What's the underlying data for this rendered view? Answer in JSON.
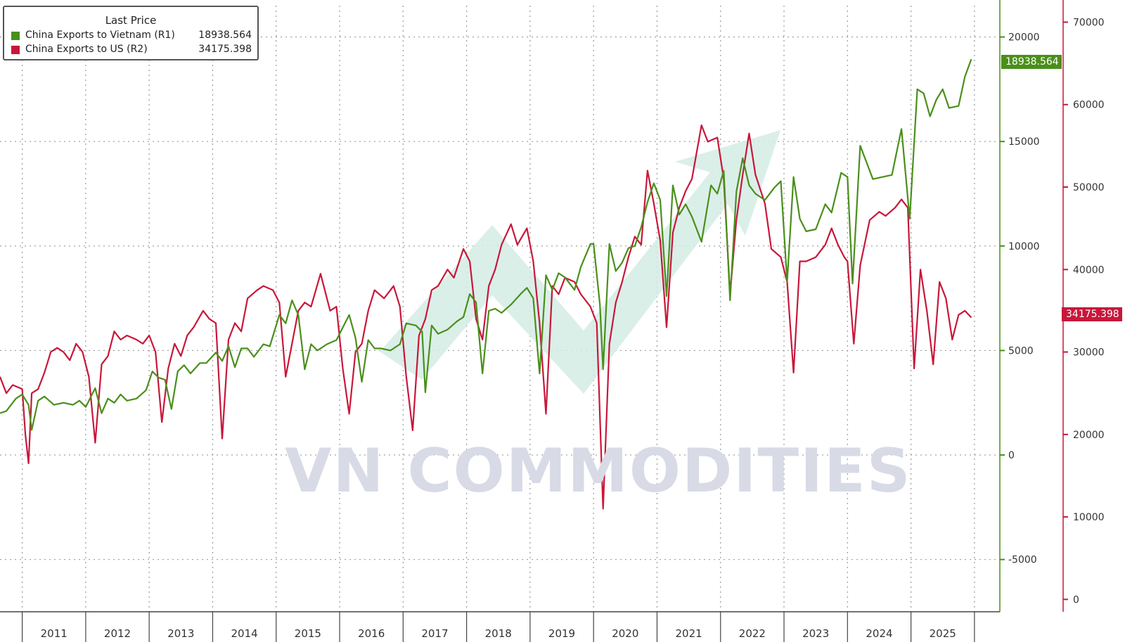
{
  "legend": {
    "title": "Last Price",
    "entries": [
      {
        "name": "China Exports to Vietnam  (R1)",
        "value": "18938.564",
        "color": "#4a8f1b"
      },
      {
        "name": "China Exports to US  (R2)",
        "value": "34175.398",
        "color": "#c8173a"
      }
    ]
  },
  "watermark": "VN COMMODITIES",
  "last_tags": {
    "vietnam": "18938.564",
    "us": "34175.398"
  },
  "chart_data": {
    "type": "line",
    "x_tick_labels": [
      "2011",
      "2012",
      "2013",
      "2014",
      "2015",
      "2016",
      "2017",
      "2018",
      "2019",
      "2020",
      "2021",
      "2022",
      "2023",
      "2024",
      "2025"
    ],
    "x_range": [
      2010.65,
      2026.4
    ],
    "axes": {
      "r1": {
        "ticks": [
          20000,
          15000,
          10000,
          5000,
          0,
          -5000
        ],
        "range": [
          -7500,
          21500
        ],
        "color": "#4a8f1b"
      },
      "r2": {
        "ticks": [
          70000,
          60000,
          50000,
          40000,
          30000,
          20000,
          10000,
          0
        ],
        "range": [
          -1500,
          72000
        ],
        "color": "#c8173a"
      }
    },
    "grid": true,
    "legend_position": "top-left",
    "series": [
      {
        "name": "China Exports to Vietnam  (R1)",
        "axis": "r1",
        "color": "#4a8f1b",
        "points": [
          [
            2010.65,
            2000
          ],
          [
            2010.75,
            2100
          ],
          [
            2010.9,
            2700
          ],
          [
            2011.0,
            2900
          ],
          [
            2011.1,
            2400
          ],
          [
            2011.15,
            1200
          ],
          [
            2011.25,
            2600
          ],
          [
            2011.35,
            2800
          ],
          [
            2011.5,
            2400
          ],
          [
            2011.65,
            2500
          ],
          [
            2011.8,
            2400
          ],
          [
            2011.9,
            2600
          ],
          [
            2012.0,
            2300
          ],
          [
            2012.15,
            3200
          ],
          [
            2012.25,
            2000
          ],
          [
            2012.35,
            2700
          ],
          [
            2012.45,
            2500
          ],
          [
            2012.55,
            2900
          ],
          [
            2012.65,
            2600
          ],
          [
            2012.8,
            2700
          ],
          [
            2012.95,
            3100
          ],
          [
            2013.05,
            4000
          ],
          [
            2013.15,
            3700
          ],
          [
            2013.25,
            3600
          ],
          [
            2013.35,
            2200
          ],
          [
            2013.45,
            4000
          ],
          [
            2013.55,
            4300
          ],
          [
            2013.65,
            3900
          ],
          [
            2013.8,
            4400
          ],
          [
            2013.9,
            4400
          ],
          [
            2014.05,
            4900
          ],
          [
            2014.15,
            4500
          ],
          [
            2014.25,
            5200
          ],
          [
            2014.35,
            4200
          ],
          [
            2014.45,
            5100
          ],
          [
            2014.55,
            5100
          ],
          [
            2014.65,
            4700
          ],
          [
            2014.8,
            5300
          ],
          [
            2014.9,
            5200
          ],
          [
            2015.05,
            6700
          ],
          [
            2015.15,
            6300
          ],
          [
            2015.25,
            7400
          ],
          [
            2015.35,
            6700
          ],
          [
            2015.45,
            4100
          ],
          [
            2015.55,
            5300
          ],
          [
            2015.65,
            5000
          ],
          [
            2015.8,
            5300
          ],
          [
            2015.95,
            5500
          ],
          [
            2016.05,
            6100
          ],
          [
            2016.15,
            6700
          ],
          [
            2016.25,
            5600
          ],
          [
            2016.35,
            3500
          ],
          [
            2016.45,
            5500
          ],
          [
            2016.55,
            5100
          ],
          [
            2016.65,
            5100
          ],
          [
            2016.8,
            5000
          ],
          [
            2016.95,
            5300
          ],
          [
            2017.05,
            6300
          ],
          [
            2017.2,
            6200
          ],
          [
            2017.3,
            5900
          ],
          [
            2017.35,
            3000
          ],
          [
            2017.45,
            6200
          ],
          [
            2017.55,
            5800
          ],
          [
            2017.7,
            6000
          ],
          [
            2017.85,
            6400
          ],
          [
            2017.95,
            6600
          ],
          [
            2018.05,
            7700
          ],
          [
            2018.15,
            7300
          ],
          [
            2018.25,
            3900
          ],
          [
            2018.35,
            6900
          ],
          [
            2018.45,
            7000
          ],
          [
            2018.55,
            6800
          ],
          [
            2018.7,
            7200
          ],
          [
            2018.85,
            7700
          ],
          [
            2018.95,
            8000
          ],
          [
            2019.05,
            7500
          ],
          [
            2019.15,
            3900
          ],
          [
            2019.25,
            8600
          ],
          [
            2019.35,
            7900
          ],
          [
            2019.45,
            8700
          ],
          [
            2019.55,
            8500
          ],
          [
            2019.7,
            7900
          ],
          [
            2019.8,
            9000
          ],
          [
            2019.95,
            10100
          ],
          [
            2020.0,
            10100
          ],
          [
            2020.1,
            7200
          ],
          [
            2020.15,
            4100
          ],
          [
            2020.25,
            10100
          ],
          [
            2020.35,
            8800
          ],
          [
            2020.45,
            9200
          ],
          [
            2020.55,
            9900
          ],
          [
            2020.65,
            10000
          ],
          [
            2020.75,
            10900
          ],
          [
            2020.85,
            12100
          ],
          [
            2020.95,
            13000
          ],
          [
            2021.05,
            12200
          ],
          [
            2021.15,
            7600
          ],
          [
            2021.25,
            12900
          ],
          [
            2021.35,
            11500
          ],
          [
            2021.45,
            12000
          ],
          [
            2021.55,
            11400
          ],
          [
            2021.7,
            10200
          ],
          [
            2021.85,
            12900
          ],
          [
            2021.95,
            12500
          ],
          [
            2022.05,
            13600
          ],
          [
            2022.15,
            7400
          ],
          [
            2022.25,
            12600
          ],
          [
            2022.35,
            14200
          ],
          [
            2022.45,
            12900
          ],
          [
            2022.55,
            12500
          ],
          [
            2022.7,
            12200
          ],
          [
            2022.85,
            12800
          ],
          [
            2022.95,
            13100
          ],
          [
            2023.05,
            8300
          ],
          [
            2023.15,
            13300
          ],
          [
            2023.25,
            11300
          ],
          [
            2023.35,
            10700
          ],
          [
            2023.5,
            10800
          ],
          [
            2023.65,
            12000
          ],
          [
            2023.75,
            11600
          ],
          [
            2023.9,
            13500
          ],
          [
            2024.0,
            13300
          ],
          [
            2024.08,
            8200
          ],
          [
            2024.2,
            14800
          ],
          [
            2024.3,
            14000
          ],
          [
            2024.4,
            13200
          ],
          [
            2024.55,
            13300
          ],
          [
            2024.7,
            13400
          ],
          [
            2024.85,
            15600
          ],
          [
            2024.98,
            11300
          ],
          [
            2025.1,
            17500
          ],
          [
            2025.2,
            17300
          ],
          [
            2025.3,
            16200
          ],
          [
            2025.4,
            17000
          ],
          [
            2025.5,
            17500
          ],
          [
            2025.6,
            16600
          ],
          [
            2025.75,
            16700
          ],
          [
            2025.85,
            18100
          ],
          [
            2025.95,
            18938.564
          ]
        ]
      },
      {
        "name": "China Exports to US  (R2)",
        "axis": "r2",
        "color": "#c8173a",
        "points": [
          [
            2010.65,
            27000
          ],
          [
            2010.75,
            25000
          ],
          [
            2010.85,
            26000
          ],
          [
            2011.0,
            25500
          ],
          [
            2011.05,
            20000
          ],
          [
            2011.1,
            16500
          ],
          [
            2011.15,
            25000
          ],
          [
            2011.25,
            25500
          ],
          [
            2011.35,
            27500
          ],
          [
            2011.45,
            30000
          ],
          [
            2011.55,
            30500
          ],
          [
            2011.65,
            30000
          ],
          [
            2011.75,
            29000
          ],
          [
            2011.85,
            31000
          ],
          [
            2011.95,
            30000
          ],
          [
            2012.05,
            27000
          ],
          [
            2012.15,
            19000
          ],
          [
            2012.25,
            28500
          ],
          [
            2012.35,
            29500
          ],
          [
            2012.45,
            32500
          ],
          [
            2012.55,
            31500
          ],
          [
            2012.65,
            32000
          ],
          [
            2012.8,
            31500
          ],
          [
            2012.9,
            31000
          ],
          [
            2013.0,
            32000
          ],
          [
            2013.1,
            30000
          ],
          [
            2013.2,
            21500
          ],
          [
            2013.3,
            28000
          ],
          [
            2013.4,
            31000
          ],
          [
            2013.5,
            29500
          ],
          [
            2013.6,
            32000
          ],
          [
            2013.7,
            33000
          ],
          [
            2013.85,
            35000
          ],
          [
            2013.95,
            34000
          ],
          [
            2014.05,
            33500
          ],
          [
            2014.15,
            19500
          ],
          [
            2014.25,
            31500
          ],
          [
            2014.35,
            33500
          ],
          [
            2014.45,
            32500
          ],
          [
            2014.55,
            36500
          ],
          [
            2014.7,
            37500
          ],
          [
            2014.8,
            38000
          ],
          [
            2014.95,
            37500
          ],
          [
            2015.05,
            36000
          ],
          [
            2015.15,
            27000
          ],
          [
            2015.25,
            31000
          ],
          [
            2015.35,
            35000
          ],
          [
            2015.45,
            36000
          ],
          [
            2015.55,
            35500
          ],
          [
            2015.7,
            39500
          ],
          [
            2015.85,
            35000
          ],
          [
            2015.95,
            35500
          ],
          [
            2016.05,
            28000
          ],
          [
            2016.15,
            22500
          ],
          [
            2016.25,
            30000
          ],
          [
            2016.35,
            31000
          ],
          [
            2016.45,
            35000
          ],
          [
            2016.55,
            37500
          ],
          [
            2016.7,
            36500
          ],
          [
            2016.85,
            38000
          ],
          [
            2016.95,
            35500
          ],
          [
            2017.05,
            27000
          ],
          [
            2017.15,
            20500
          ],
          [
            2017.25,
            32000
          ],
          [
            2017.35,
            34000
          ],
          [
            2017.45,
            37500
          ],
          [
            2017.55,
            38000
          ],
          [
            2017.7,
            40000
          ],
          [
            2017.8,
            39000
          ],
          [
            2017.95,
            42500
          ],
          [
            2018.05,
            41000
          ],
          [
            2018.15,
            34000
          ],
          [
            2018.25,
            31500
          ],
          [
            2018.35,
            38000
          ],
          [
            2018.45,
            40000
          ],
          [
            2018.55,
            43000
          ],
          [
            2018.7,
            45500
          ],
          [
            2018.8,
            43000
          ],
          [
            2018.95,
            45000
          ],
          [
            2019.05,
            41000
          ],
          [
            2019.15,
            33500
          ],
          [
            2019.25,
            22500
          ],
          [
            2019.35,
            38000
          ],
          [
            2019.45,
            37000
          ],
          [
            2019.55,
            39000
          ],
          [
            2019.7,
            38500
          ],
          [
            2019.8,
            37000
          ],
          [
            2019.95,
            35500
          ],
          [
            2020.05,
            33500
          ],
          [
            2020.15,
            11000
          ],
          [
            2020.25,
            31000
          ],
          [
            2020.35,
            36000
          ],
          [
            2020.45,
            38500
          ],
          [
            2020.55,
            41500
          ],
          [
            2020.65,
            44000
          ],
          [
            2020.75,
            43000
          ],
          [
            2020.85,
            52000
          ],
          [
            2020.95,
            48000
          ],
          [
            2021.05,
            43500
          ],
          [
            2021.15,
            33000
          ],
          [
            2021.25,
            44500
          ],
          [
            2021.35,
            47500
          ],
          [
            2021.45,
            49500
          ],
          [
            2021.55,
            51000
          ],
          [
            2021.7,
            57500
          ],
          [
            2021.8,
            55500
          ],
          [
            2021.95,
            56000
          ],
          [
            2022.05,
            51000
          ],
          [
            2022.15,
            37000
          ],
          [
            2022.25,
            46000
          ],
          [
            2022.35,
            51500
          ],
          [
            2022.45,
            56500
          ],
          [
            2022.55,
            51500
          ],
          [
            2022.7,
            48000
          ],
          [
            2022.8,
            42500
          ],
          [
            2022.95,
            41500
          ],
          [
            2023.05,
            38500
          ],
          [
            2023.15,
            27500
          ],
          [
            2023.25,
            41000
          ],
          [
            2023.35,
            41000
          ],
          [
            2023.5,
            41500
          ],
          [
            2023.65,
            43000
          ],
          [
            2023.75,
            45000
          ],
          [
            2023.85,
            43000
          ],
          [
            2023.95,
            41500
          ],
          [
            2024.0,
            41000
          ],
          [
            2024.1,
            31000
          ],
          [
            2024.2,
            40500
          ],
          [
            2024.35,
            46000
          ],
          [
            2024.5,
            47000
          ],
          [
            2024.6,
            46500
          ],
          [
            2024.75,
            47500
          ],
          [
            2024.85,
            48500
          ],
          [
            2024.95,
            47500
          ],
          [
            2025.05,
            28000
          ],
          [
            2025.15,
            40000
          ],
          [
            2025.25,
            35000
          ],
          [
            2025.35,
            28500
          ],
          [
            2025.45,
            38500
          ],
          [
            2025.55,
            36500
          ],
          [
            2025.65,
            31500
          ],
          [
            2025.75,
            34500
          ],
          [
            2025.85,
            35000
          ],
          [
            2025.95,
            34175.398
          ]
        ]
      }
    ]
  }
}
